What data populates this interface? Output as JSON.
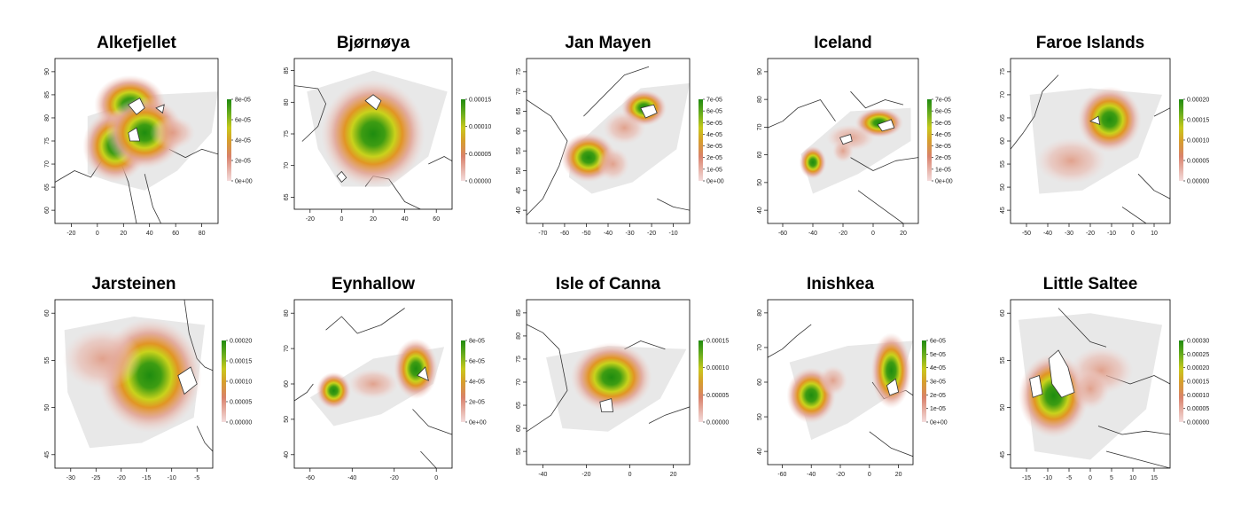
{
  "chart_data": [
    {
      "type": "heatmap",
      "title": "Alkefjellet",
      "x_ticks": [
        "-20",
        "0",
        "20",
        "40",
        "60",
        "80"
      ],
      "y_ticks": [
        "60",
        "65",
        "70",
        "75",
        "80",
        "85",
        "90"
      ],
      "legend_ticks": [
        "8e-05",
        "6e-05",
        "4e-05",
        "2e-05",
        "0e+00"
      ]
    },
    {
      "type": "heatmap",
      "title": "Bjørnøya",
      "x_ticks": [
        "-20",
        "0",
        "20",
        "40",
        "60"
      ],
      "y_ticks": [
        "65",
        "70",
        "75",
        "80",
        "85"
      ],
      "legend_ticks": [
        "0.00015",
        "0.00010",
        "0.00005",
        "0.00000"
      ]
    },
    {
      "type": "heatmap",
      "title": "Jan Mayen",
      "x_ticks": [
        "-70",
        "-60",
        "-50",
        "-40",
        "-30",
        "-20",
        "-10"
      ],
      "y_ticks": [
        "40",
        "45",
        "50",
        "55",
        "60",
        "65",
        "70",
        "75"
      ],
      "legend_ticks": [
        "7e-05",
        "6e-05",
        "5e-05",
        "4e-05",
        "3e-05",
        "2e-05",
        "1e-05",
        "0e+00"
      ]
    },
    {
      "type": "heatmap",
      "title": "Iceland",
      "x_ticks": [
        "-60",
        "-40",
        "-20",
        "0",
        "20"
      ],
      "y_ticks": [
        "40",
        "50",
        "60",
        "70",
        "80",
        "90"
      ],
      "legend_ticks": [
        "7e-05",
        "6e-05",
        "5e-05",
        "4e-05",
        "3e-05",
        "2e-05",
        "1e-05",
        "0e+00"
      ]
    },
    {
      "type": "heatmap",
      "title": "Faroe Islands",
      "x_ticks": [
        "-50",
        "-40",
        "-30",
        "-20",
        "-10",
        "0",
        "10"
      ],
      "y_ticks": [
        "45",
        "50",
        "55",
        "60",
        "65",
        "70",
        "75"
      ],
      "legend_ticks": [
        "0.00020",
        "0.00015",
        "0.00010",
        "0.00005",
        "0.00000"
      ]
    },
    {
      "type": "heatmap",
      "title": "Jarsteinen",
      "x_ticks": [
        "-30",
        "-25",
        "-20",
        "-15",
        "-10",
        "-5"
      ],
      "y_ticks": [
        "45",
        "50",
        "55",
        "60"
      ],
      "legend_ticks": [
        "0.00020",
        "0.00015",
        "0.00010",
        "0.00005",
        "0.00000"
      ]
    },
    {
      "type": "heatmap",
      "title": "Eynhallow",
      "x_ticks": [
        "-60",
        "-40",
        "-20",
        "0"
      ],
      "y_ticks": [
        "40",
        "50",
        "60",
        "70",
        "80"
      ],
      "legend_ticks": [
        "8e-05",
        "6e-05",
        "4e-05",
        "2e-05",
        "0e+00"
      ]
    },
    {
      "type": "heatmap",
      "title": "Isle of Canna",
      "x_ticks": [
        "-40",
        "-20",
        "0",
        "20"
      ],
      "y_ticks": [
        "55",
        "60",
        "65",
        "70",
        "75",
        "80",
        "85"
      ],
      "legend_ticks": [
        "0.00015",
        "0.00010",
        "0.00005",
        "0.00000"
      ]
    },
    {
      "type": "heatmap",
      "title": "Inishkea",
      "x_ticks": [
        "-60",
        "-40",
        "-20",
        "0",
        "20"
      ],
      "y_ticks": [
        "40",
        "50",
        "60",
        "70",
        "80"
      ],
      "legend_ticks": [
        "6e-05",
        "5e-05",
        "4e-05",
        "3e-05",
        "2e-05",
        "1e-05",
        "0e+00"
      ]
    },
    {
      "type": "heatmap",
      "title": "Little Saltee",
      "x_ticks": [
        "-15",
        "-10",
        "-5",
        "0",
        "5",
        "10",
        "15"
      ],
      "y_ticks": [
        "45",
        "50",
        "55",
        "60"
      ],
      "legend_ticks": [
        "0.00030",
        "0.00025",
        "0.00020",
        "0.00015",
        "0.00010",
        "0.00005",
        "0.00000"
      ]
    }
  ]
}
